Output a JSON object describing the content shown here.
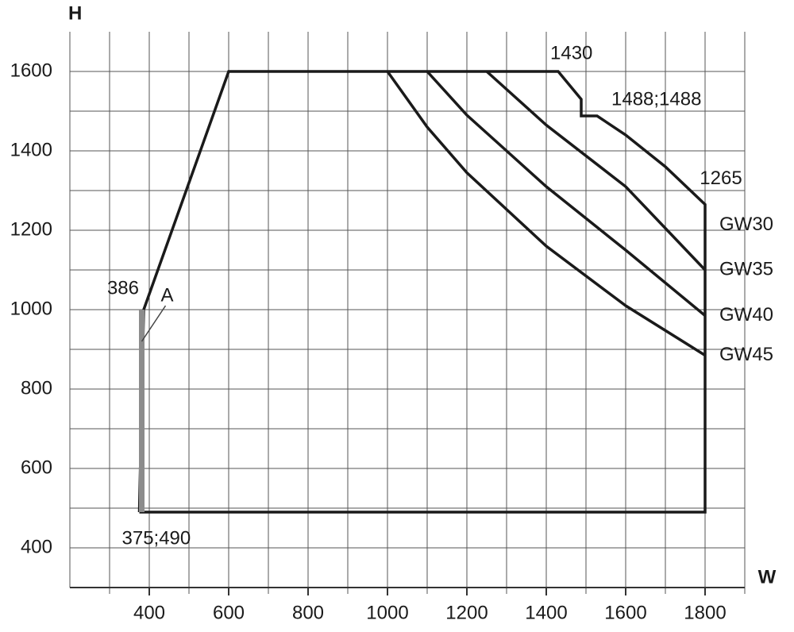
{
  "chart_data": {
    "type": "line",
    "y_label": "H",
    "x_label": "W",
    "xlim": [
      200,
      1900
    ],
    "ylim": [
      300,
      1700
    ],
    "xticks": [
      400,
      600,
      800,
      1000,
      1200,
      1400,
      1600,
      1800
    ],
    "yticks": [
      400,
      600,
      800,
      1000,
      1200,
      1400,
      1600
    ],
    "xminor_ticks": [
      300,
      400,
      500,
      600,
      700,
      800,
      900,
      1000,
      1100,
      1200,
      1300,
      1400,
      1500,
      1600,
      1700,
      1800,
      1900
    ],
    "yminor_ticks": [
      400,
      500,
      600,
      700,
      800,
      900,
      1000,
      1100,
      1200,
      1300,
      1400,
      1500,
      1600
    ],
    "grid": true,
    "series": [
      {
        "name": "GW30",
        "color": "#1a1a1a",
        "x": [
          375,
          386,
          600,
          1430,
          1488,
          1488,
          1528,
          1600,
          1700,
          1800,
          1800,
          375
        ],
        "values": [
          490,
          1000,
          1600,
          1600,
          1530,
          1488,
          1488,
          1440,
          1360,
          1265,
          490,
          490
        ]
      },
      {
        "name": "GW35",
        "color": "#1a1a1a",
        "x": [
          1250,
          1400,
          1600,
          1800
        ],
        "values": [
          1600,
          1465,
          1310,
          1100
        ]
      },
      {
        "name": "GW40",
        "color": "#1a1a1a",
        "x": [
          1100,
          1200,
          1400,
          1600,
          1800
        ],
        "values": [
          1600,
          1490,
          1310,
          1150,
          985
        ]
      },
      {
        "name": "GW45",
        "color": "#1a1a1a",
        "x": [
          1000,
          1100,
          1200,
          1400,
          1600,
          1800
        ],
        "values": [
          1600,
          1460,
          1345,
          1160,
          1010,
          885
        ]
      },
      {
        "name": "A",
        "color": "#8c8c8c",
        "x": [
          381,
          381
        ],
        "values": [
          490,
          1000
        ]
      }
    ],
    "annotations": [
      {
        "text": "1430",
        "x": 1430,
        "y": 1600
      },
      {
        "text": "1488;1488",
        "x": 1528,
        "y": 1488
      },
      {
        "text": "1265",
        "x": 1800,
        "y": 1265
      },
      {
        "text": "386",
        "x": 386,
        "y": 1000
      },
      {
        "text": "375;490",
        "x": 375,
        "y": 490
      }
    ]
  }
}
